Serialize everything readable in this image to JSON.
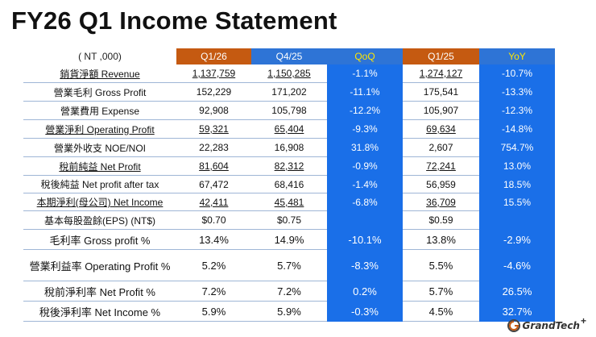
{
  "title": "FY26 Q1 Income Statement",
  "table": {
    "header": [
      "( NT ,000)",
      "Q1/26",
      "Q4/25",
      "QoQ",
      "Q1/25",
      "YoY"
    ],
    "rows": [
      [
        "銷貨淨額 Revenue",
        "1,137,759",
        "1,150,285",
        "-1.1%",
        "1,274,127",
        "-10.7%"
      ],
      [
        "營業毛利 Gross Profit",
        "152,229",
        "171,202",
        "-11.1%",
        "175,541",
        "-13.3%"
      ],
      [
        "營業費用 Expense",
        "92,908",
        "105,798",
        "-12.2%",
        "105,907",
        "-12.3%"
      ],
      [
        "營業淨利 Operating Profit",
        "59,321",
        "65,404",
        "-9.3%",
        "69,634",
        "-14.8%"
      ],
      [
        "營業外收支 NOE/NOI",
        "22,283",
        "16,908",
        "31.8%",
        "2,607",
        "754.7%"
      ],
      [
        "稅前純益 Net Profit",
        "81,604",
        "82,312",
        "-0.9%",
        "72,241",
        "13.0%"
      ],
      [
        "稅後純益 Net profit after tax",
        "67,472",
        "68,416",
        "-1.4%",
        "56,959",
        "18.5%"
      ],
      [
        "本期淨利(母公司) Net Income",
        "42,411",
        "45,481",
        "-6.8%",
        "36,709",
        "15.5%"
      ],
      [
        "基本每股盈餘(EPS) (NT$)",
        "$0.70",
        "$0.75",
        "",
        "$0.59",
        ""
      ],
      [
        "毛利率 Gross profit %",
        "13.4%",
        "14.9%",
        "-10.1%",
        "13.8%",
        "-2.9%"
      ],
      [
        "營業利益率 Operating Profit %",
        "5.2%",
        "5.7%",
        "-8.3%",
        "5.5%",
        "-4.6%"
      ],
      [
        "稅前淨利率 Net Profit %",
        "7.2%",
        "7.2%",
        "0.2%",
        "5.7%",
        "26.5%"
      ],
      [
        "稅後淨利率 Net Income %",
        "5.9%",
        "5.9%",
        "-0.3%",
        "4.5%",
        "32.7%"
      ]
    ]
  },
  "logo": {
    "text": "GrandTech",
    "plus": "+"
  },
  "colors": {
    "orange": "#c55a11",
    "blue_header": "#2e74d6",
    "blue_cell": "#1a6fe8",
    "yellow_text": "#ffe600"
  }
}
